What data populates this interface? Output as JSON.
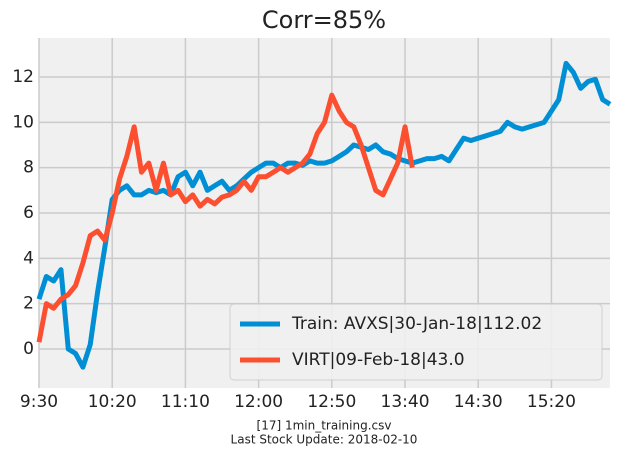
{
  "chart_data": {
    "type": "line",
    "title": "Corr=85%",
    "caption": [
      "[17] 1min_training.csv",
      "Last Stock Update: 2018-02-10"
    ],
    "x": [
      0,
      5,
      10,
      15,
      20,
      25,
      30,
      35,
      40,
      45,
      50,
      55,
      60,
      65,
      70,
      75,
      80,
      85,
      90,
      95,
      100,
      105,
      110,
      115,
      120,
      125,
      130,
      135,
      140,
      145,
      150,
      155,
      160,
      165,
      170,
      175,
      180,
      185,
      190,
      195,
      200,
      205,
      210,
      215,
      220,
      225,
      230,
      235,
      240,
      245,
      250,
      255,
      260,
      265,
      270,
      275,
      280,
      285,
      290,
      295,
      300,
      305,
      310,
      315,
      320,
      325,
      330,
      335,
      340,
      345,
      350,
      355,
      360,
      365,
      370,
      375,
      380,
      385,
      390
    ],
    "series": [
      {
        "name": "Train: AVXS|30-Jan-18|112.02",
        "color": "#008fd5",
        "values": [
          2.2,
          3.2,
          3.0,
          3.5,
          0.0,
          -0.2,
          -0.8,
          0.2,
          2.5,
          4.5,
          6.6,
          7.0,
          7.2,
          6.8,
          6.8,
          7.0,
          6.9,
          7.0,
          6.8,
          7.6,
          7.8,
          7.2,
          7.8,
          7.0,
          7.2,
          7.4,
          7.0,
          7.2,
          7.5,
          7.8,
          8.0,
          8.2,
          8.2,
          8.0,
          8.2,
          8.2,
          8.1,
          8.3,
          8.2,
          8.2,
          8.3,
          8.5,
          8.7,
          9.0,
          8.9,
          8.8,
          9.0,
          8.7,
          8.6,
          8.4,
          8.3,
          8.2,
          8.3,
          8.4,
          8.4,
          8.5,
          8.3,
          8.8,
          9.3,
          9.2,
          9.3,
          9.4,
          9.5,
          9.6,
          10.0,
          9.8,
          9.7,
          9.8,
          9.9,
          10.0,
          10.5,
          11.0,
          12.6,
          12.2,
          11.5,
          11.8,
          11.9,
          11.0,
          10.8
        ]
      },
      {
        "name": "VIRT|09-Feb-18|43.0",
        "color": "#fc4f30",
        "values": [
          0.3,
          2.0,
          1.8,
          2.2,
          2.4,
          2.8,
          3.8,
          5.0,
          5.2,
          4.8,
          6.0,
          7.5,
          8.5,
          9.8,
          7.8,
          8.2,
          7.0,
          8.2,
          6.8,
          7.0,
          6.5,
          6.8,
          6.3,
          6.6,
          6.4,
          6.7,
          6.8,
          7.0,
          7.4,
          7.0,
          7.6,
          7.6,
          7.8,
          8.0,
          7.8,
          8.0,
          8.2,
          8.6,
          9.5,
          10.0,
          11.2,
          10.5,
          10.0,
          9.8,
          9.0,
          8.0,
          7.0,
          6.8,
          7.5,
          8.2,
          9.8,
          8.0,
          null,
          null,
          null,
          null,
          null,
          null,
          null,
          null,
          null,
          null,
          null,
          null,
          null,
          null,
          null,
          null,
          null,
          null,
          null,
          null,
          null,
          null,
          null,
          null,
          null,
          null,
          null
        ]
      }
    ],
    "xlim": [
      0,
      390
    ],
    "xticks": [
      {
        "value": 0,
        "label": "9:30"
      },
      {
        "value": 50,
        "label": "10:20"
      },
      {
        "value": 100,
        "label": "11:10"
      },
      {
        "value": 150,
        "label": "12:00"
      },
      {
        "value": 200,
        "label": "12:50"
      },
      {
        "value": 250,
        "label": "13:40"
      },
      {
        "value": 300,
        "label": "14:30"
      },
      {
        "value": 350,
        "label": "15:20"
      }
    ],
    "ylim": [
      -1.72,
      13.72
    ],
    "yticks": [
      0,
      2,
      4,
      6,
      8,
      10,
      12
    ],
    "grid": true,
    "legend": "lower right"
  }
}
